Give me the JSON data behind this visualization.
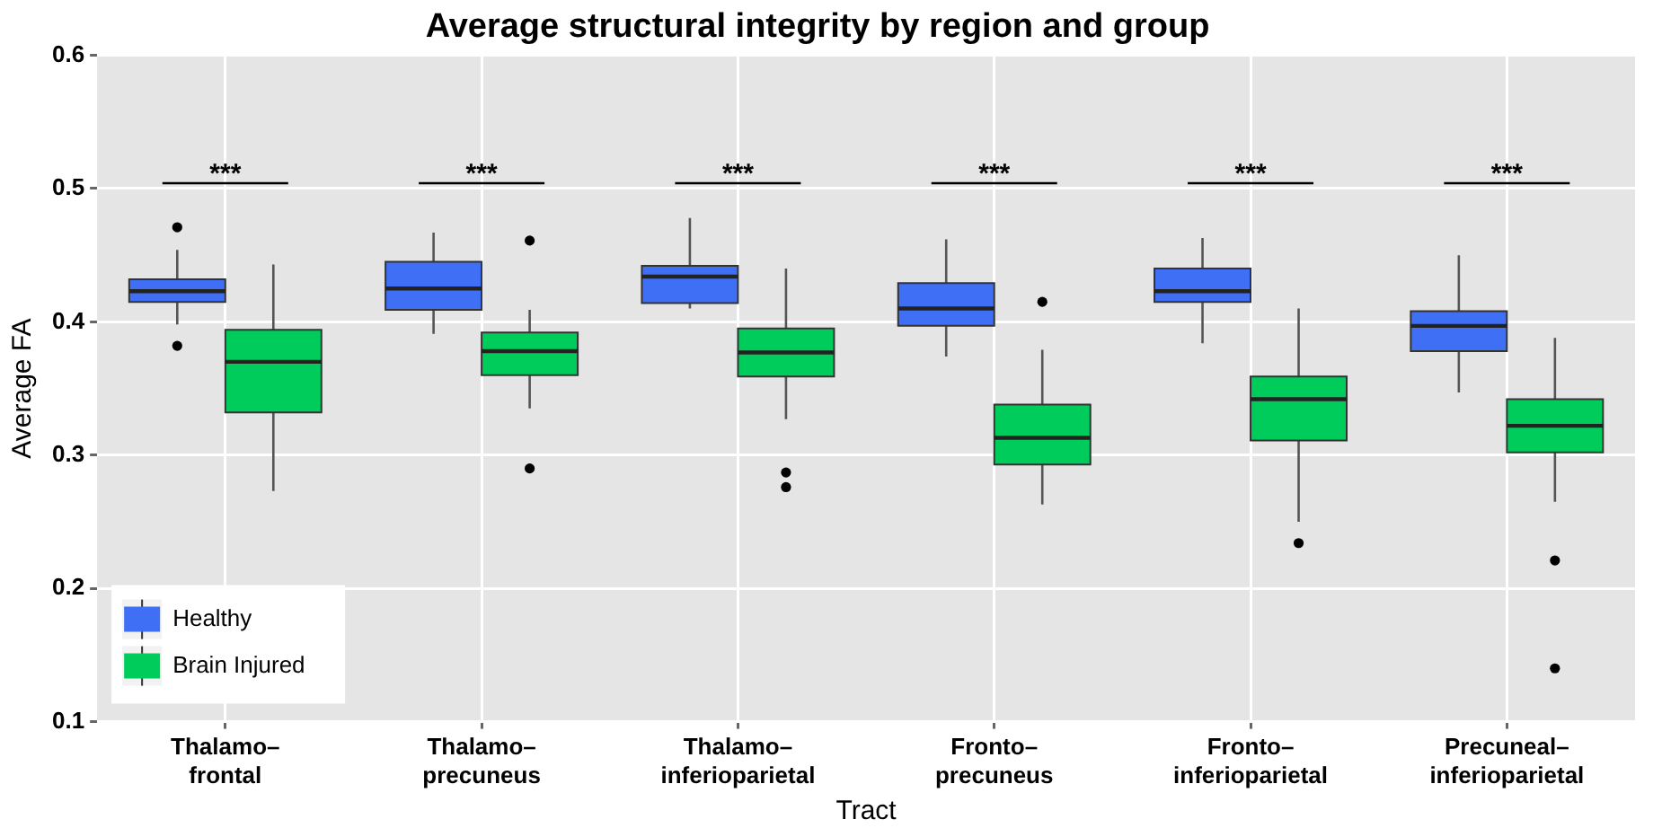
{
  "chart_data": {
    "type": "box",
    "title": "Average structural integrity by region and group",
    "xlabel": "Tract",
    "ylabel": "Average FA",
    "categories": [
      "Thalamo–frontal",
      "Thalamo–precuneus",
      "Thalamo–inferioparietal",
      "Fronto–precuneus",
      "Fronto–inferioparietal",
      "Precuneal–inferioparietal"
    ],
    "series": [
      {
        "name": "Healthy",
        "color": "#3f6ff4",
        "boxes": [
          {
            "low": 0.398,
            "q1": 0.415,
            "median": 0.423,
            "q3": 0.432,
            "high": 0.454,
            "outliers": [
              0.471,
              0.382
            ]
          },
          {
            "low": 0.391,
            "q1": 0.409,
            "median": 0.425,
            "q3": 0.445,
            "high": 0.467
          },
          {
            "low": 0.41,
            "q1": 0.414,
            "median": 0.434,
            "q3": 0.442,
            "high": 0.478
          },
          {
            "low": 0.374,
            "q1": 0.397,
            "median": 0.41,
            "q3": 0.429,
            "high": 0.462
          },
          {
            "low": 0.384,
            "q1": 0.415,
            "median": 0.423,
            "q3": 0.44,
            "high": 0.463
          },
          {
            "low": 0.347,
            "q1": 0.378,
            "median": 0.397,
            "q3": 0.408,
            "high": 0.45
          }
        ]
      },
      {
        "name": "Brain Injured",
        "color": "#00cc5c",
        "boxes": [
          {
            "low": 0.273,
            "q1": 0.332,
            "median": 0.37,
            "q3": 0.394,
            "high": 0.443
          },
          {
            "low": 0.335,
            "q1": 0.36,
            "median": 0.378,
            "q3": 0.392,
            "high": 0.409,
            "outliers": [
              0.461,
              0.29
            ]
          },
          {
            "low": 0.327,
            "q1": 0.359,
            "median": 0.377,
            "q3": 0.395,
            "high": 0.44,
            "outliers": [
              0.287,
              0.276
            ]
          },
          {
            "low": 0.263,
            "q1": 0.293,
            "median": 0.313,
            "q3": 0.338,
            "high": 0.379,
            "outliers": [
              0.415
            ]
          },
          {
            "low": 0.25,
            "q1": 0.311,
            "median": 0.342,
            "q3": 0.359,
            "high": 0.41,
            "outliers": [
              0.234
            ]
          },
          {
            "low": 0.265,
            "q1": 0.302,
            "median": 0.322,
            "q3": 0.342,
            "high": 0.388,
            "outliers": [
              0.221,
              0.14
            ]
          }
        ]
      }
    ],
    "annotations": [
      "***",
      "***",
      "***",
      "***",
      "***",
      "***"
    ],
    "ylim": [
      0.1,
      0.6
    ],
    "yticks": [
      0.1,
      0.2,
      0.3,
      0.4,
      0.5,
      0.6
    ],
    "grid": true,
    "legend": "bottom left"
  }
}
